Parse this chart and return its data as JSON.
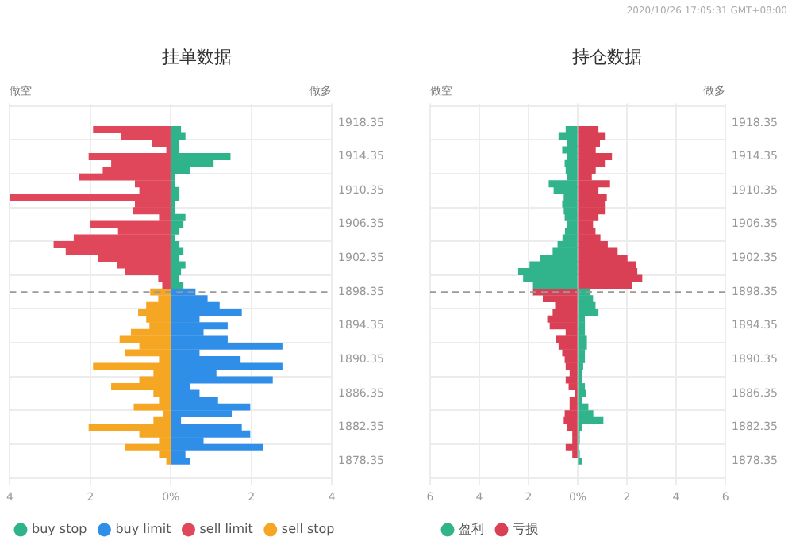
{
  "chart_data": [
    {
      "type": "bar",
      "orientation": "horizontal",
      "title": "挂单数据",
      "annotations": [
        "做空",
        "做多"
      ],
      "x": [
        1917.55,
        1916.75,
        1915.95,
        1915.15,
        1914.35,
        1913.55,
        1912.75,
        1911.95,
        1911.15,
        1910.35,
        1909.55,
        1908.75,
        1907.95,
        1907.15,
        1906.35,
        1905.55,
        1904.75,
        1903.95,
        1903.15,
        1902.35,
        1901.55,
        1900.75,
        1899.95,
        1899.15,
        1898.35,
        1897.55,
        1896.75,
        1895.95,
        1895.15,
        1894.35,
        1893.55,
        1892.75,
        1891.95,
        1891.15,
        1890.35,
        1889.55,
        1888.75,
        1887.95,
        1887.15,
        1886.35,
        1885.55,
        1884.75,
        1883.95,
        1883.15,
        1882.35,
        1881.55,
        1880.75,
        1879.95,
        1879.15,
        1878.35
      ],
      "series": [
        {
          "name": "buy stop",
          "color": "#2fb38a",
          "values": [
            0.24,
            0.35,
            0.2,
            0.2,
            1.47,
            1.05,
            0.46,
            0.1,
            0.1,
            0.2,
            0.2,
            0.1,
            0.1,
            0.35,
            0.3,
            0.2,
            0.1,
            0.2,
            0.3,
            0.2,
            0.35,
            0.24,
            0.2,
            0.3,
            null,
            null,
            null,
            null,
            null,
            null,
            null,
            null,
            null,
            null,
            null,
            null,
            null,
            null,
            null,
            null,
            null,
            null,
            null,
            null,
            null,
            null,
            null,
            null,
            null,
            null
          ]
        },
        {
          "name": "buy limit",
          "color": "#2f8fe8",
          "values": [
            null,
            null,
            null,
            null,
            null,
            null,
            null,
            null,
            null,
            null,
            null,
            null,
            null,
            null,
            null,
            null,
            null,
            null,
            null,
            null,
            null,
            null,
            null,
            null,
            0.6,
            0.9,
            1.2,
            1.75,
            0.7,
            1.4,
            0.8,
            1.4,
            2.76,
            0.7,
            1.72,
            2.76,
            1.12,
            2.52,
            0.46,
            0.7,
            1.16,
            1.96,
            1.5,
            0.24,
            1.75,
            1.96,
            0.8,
            2.28,
            0.35,
            0.46
          ]
        },
        {
          "name": "sell limit",
          "color": "#e0475a",
          "values": [
            -1.92,
            -1.23,
            -0.45,
            -0.1,
            -2.03,
            -1.47,
            -1.68,
            -2.27,
            -0.88,
            -0.77,
            -3.99,
            -0.88,
            -0.94,
            -0.28,
            -2.0,
            -1.3,
            -2.4,
            -2.9,
            -2.6,
            -1.8,
            -1.33,
            -1.12,
            -0.3,
            -0.2,
            null,
            null,
            null,
            null,
            null,
            null,
            null,
            null,
            null,
            null,
            null,
            null,
            null,
            null,
            null,
            null,
            null,
            null,
            null,
            null,
            null,
            null,
            null,
            null,
            null,
            null
          ]
        },
        {
          "name": "sell stop",
          "color": "#f5a623",
          "values": [
            null,
            null,
            null,
            null,
            null,
            null,
            null,
            null,
            null,
            null,
            null,
            null,
            null,
            null,
            null,
            null,
            null,
            null,
            null,
            null,
            null,
            null,
            null,
            null,
            -0.5,
            -0.3,
            -0.6,
            -0.8,
            -0.6,
            -0.52,
            -0.98,
            -1.26,
            -0.77,
            -1.12,
            -0.28,
            -1.92,
            -0.42,
            -0.77,
            -1.47,
            -0.42,
            -0.28,
            -0.91,
            -0.18,
            -0.42,
            -2.03,
            -0.77,
            -0.28,
            -1.12,
            -0.28,
            -0.1
          ]
        }
      ],
      "xlim": [
        -4,
        4
      ],
      "xticks": [
        {
          "value": -4,
          "label": "4"
        },
        {
          "value": -2,
          "label": "2"
        },
        {
          "value": 0,
          "label": "0%"
        },
        2,
        4
      ],
      "ylim": [
        1877.6,
        1918.6
      ],
      "yticks": [
        1878.35,
        1882.35,
        1886.35,
        1890.35,
        1894.35,
        1898.35,
        1902.35,
        1906.35,
        1910.35,
        1914.35,
        1918.35
      ],
      "ref_lines": [
        {
          "axis": "y",
          "value": 1898.35,
          "line_style": "dashed",
          "color": "#999999"
        }
      ],
      "grid": true,
      "legend": "bottom left",
      "stacked": true
    },
    {
      "type": "bar",
      "orientation": "horizontal",
      "title": "持仓数据",
      "annotations": [
        "做空",
        "做多",
        "2020/10/26 17:05:31 GMT+08:00"
      ],
      "x": [
        1917.55,
        1916.75,
        1915.95,
        1915.15,
        1914.35,
        1913.55,
        1912.75,
        1911.95,
        1911.15,
        1910.35,
        1909.55,
        1908.75,
        1907.95,
        1907.15,
        1906.35,
        1905.55,
        1904.75,
        1903.95,
        1903.15,
        1902.35,
        1901.55,
        1900.75,
        1899.95,
        1899.15,
        1898.35,
        1897.55,
        1896.75,
        1895.95,
        1895.15,
        1894.35,
        1893.55,
        1892.75,
        1891.95,
        1891.15,
        1890.35,
        1889.55,
        1888.75,
        1887.95,
        1887.15,
        1886.35,
        1885.55,
        1884.75,
        1883.95,
        1883.15,
        1882.35,
        1881.55,
        1880.75,
        1879.95,
        1879.15,
        1878.35
      ],
      "series": [
        {
          "name": "盈利",
          "color": "#31b38c",
          "values": [
            -0.47,
            -0.76,
            -0.41,
            -0.61,
            -0.41,
            -0.51,
            -0.47,
            -0.41,
            -1.16,
            -0.96,
            -0.55,
            -0.61,
            -0.55,
            -0.51,
            -0.4,
            -0.5,
            -0.6,
            -0.8,
            -1.0,
            -1.5,
            -1.94,
            -2.4,
            -2.2,
            -1.8,
            0.5,
            0.6,
            0.7,
            0.82,
            0.27,
            0.27,
            0.27,
            0.35,
            0.35,
            0.27,
            0.27,
            0.2,
            0.14,
            0.14,
            0.27,
            0.31,
            0.14,
            0.41,
            0.61,
            1.02,
            0.14,
            0.06,
            0.06,
            0.04,
            0.06,
            0.14
          ]
        },
        {
          "name": "亏损",
          "color": "#d94055",
          "values": [
            0.82,
            1.08,
            0.88,
            0.71,
            1.37,
            1.08,
            0.71,
            0.55,
            1.29,
            0.82,
            1.16,
            1.08,
            1.08,
            0.82,
            0.6,
            0.7,
            0.9,
            1.2,
            1.6,
            2.0,
            2.35,
            2.4,
            2.6,
            2.2,
            -1.8,
            -1.4,
            -0.9,
            -1.0,
            -1.22,
            -1.12,
            -0.47,
            -0.88,
            -0.76,
            -0.61,
            -0.51,
            -0.47,
            -0.31,
            -0.47,
            -0.35,
            -0.1,
            -0.31,
            -0.31,
            -0.51,
            -0.55,
            -0.41,
            -0.2,
            -0.2,
            -0.47,
            -0.2,
            null
          ]
        }
      ],
      "xlim": [
        -6,
        6
      ],
      "xticks": [
        {
          "value": -6,
          "label": "6"
        },
        {
          "value": -4,
          "label": "4"
        },
        {
          "value": -2,
          "label": "2"
        },
        {
          "value": 0,
          "label": "0%"
        },
        2,
        4,
        6
      ],
      "ylim": [
        1877.6,
        1918.6
      ],
      "yticks": [
        1878.35,
        1882.35,
        1886.35,
        1890.35,
        1894.35,
        1898.35,
        1902.35,
        1906.35,
        1910.35,
        1914.35,
        1918.35
      ],
      "ref_lines": [
        {
          "axis": "y",
          "value": 1898.35,
          "line_style": "dashed",
          "color": "#999999"
        }
      ],
      "grid": true,
      "legend": "bottom left",
      "stacked": true
    }
  ]
}
